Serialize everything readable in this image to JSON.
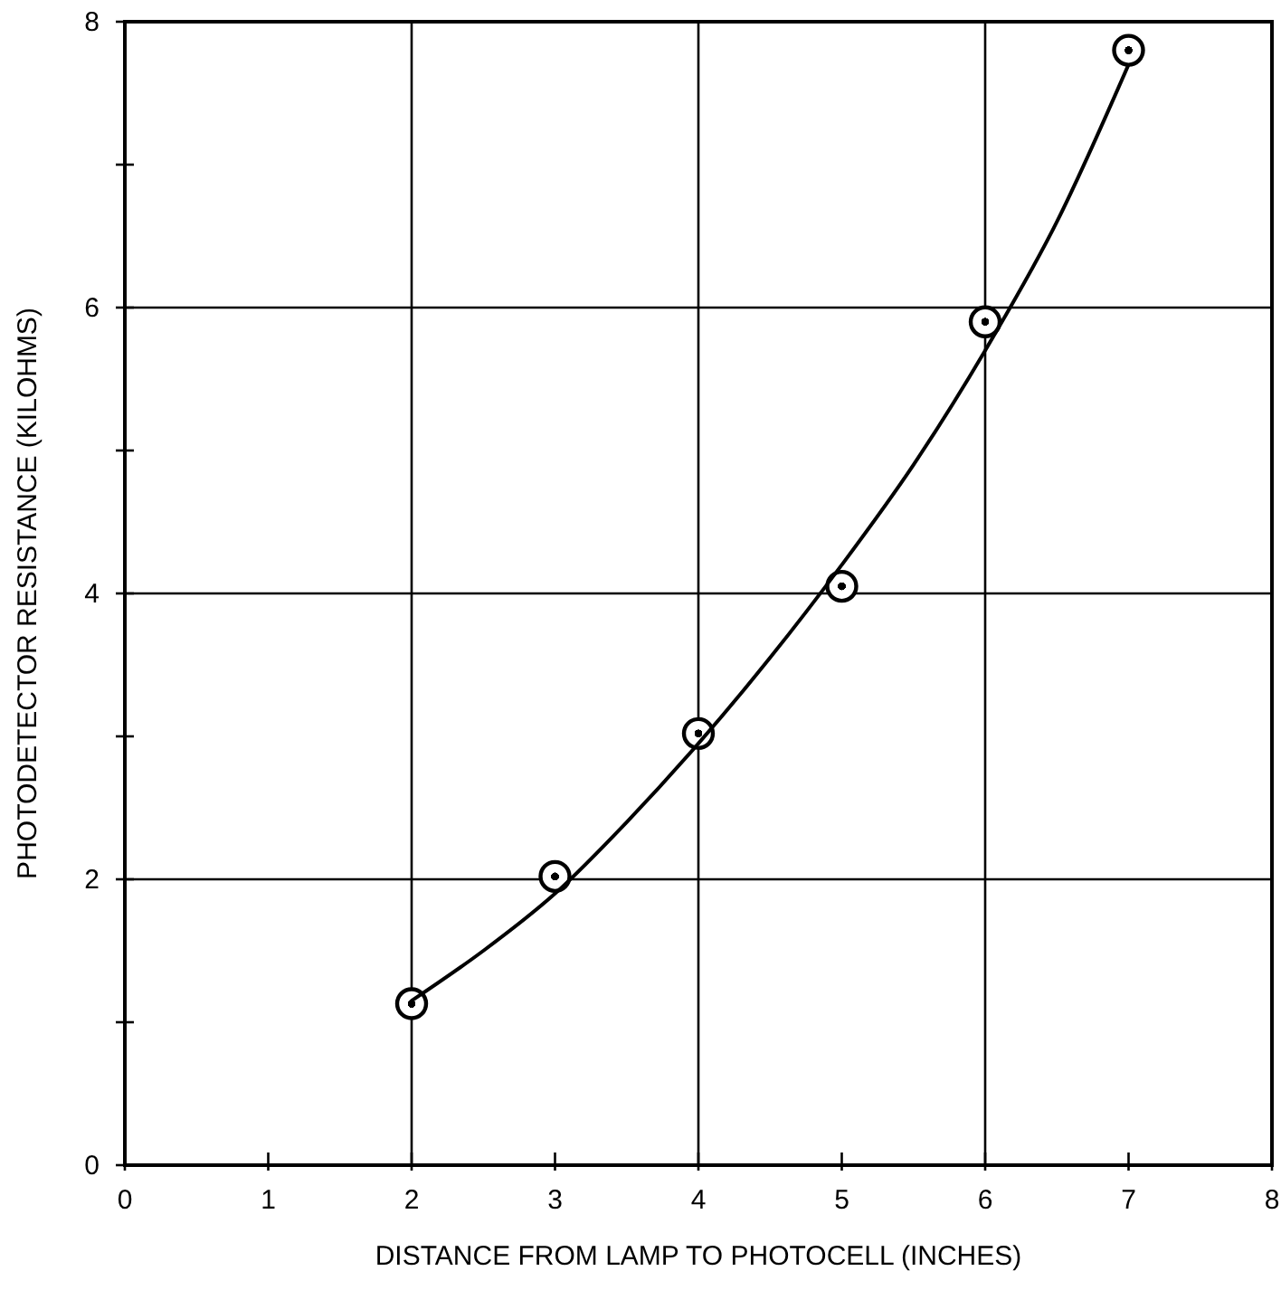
{
  "chart_data": {
    "type": "scatter",
    "xlabel": "DISTANCE FROM LAMP TO PHOTOCELL (INCHES)",
    "ylabel": "PHOTODETECTOR RESISTANCE (KILOHMS)",
    "xlim": [
      0,
      8
    ],
    "ylim": [
      0,
      8
    ],
    "xticks": [
      0,
      1,
      2,
      3,
      4,
      5,
      6,
      7,
      8
    ],
    "yticks": [
      0,
      {
        "value": 1,
        "label": null
      },
      2,
      {
        "value": 3,
        "label": null
      },
      4,
      {
        "value": 5,
        "label": null
      },
      6,
      {
        "value": 7,
        "label": null
      },
      8
    ],
    "grid": true,
    "marker": "circle",
    "series": [
      {
        "color": "#000000",
        "x": [
          2,
          3,
          4,
          5,
          6,
          7
        ],
        "values": [
          1.13,
          2.02,
          3.02,
          4.05,
          5.9,
          7.8
        ]
      },
      {
        "type": "line",
        "color": "#000000",
        "marker": "none",
        "line_style": "solid",
        "x": [
          2,
          2.5,
          3,
          3.5,
          4,
          4.5,
          5,
          5.5,
          6,
          6.5,
          7
        ],
        "values": [
          1.15,
          1.5,
          1.9,
          2.4,
          2.95,
          3.55,
          4.2,
          4.9,
          5.7,
          6.6,
          7.7
        ]
      }
    ]
  }
}
